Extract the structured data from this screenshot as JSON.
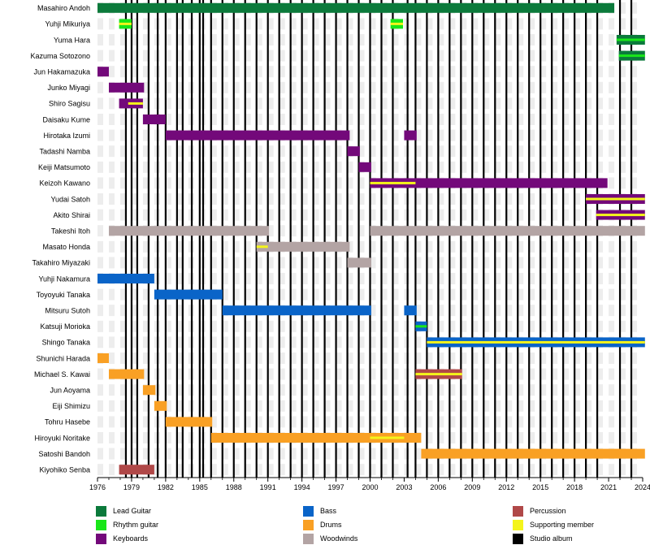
{
  "chart_data": {
    "type": "timeline",
    "x_range": [
      1976,
      2024
    ],
    "x_ticks": [
      1976,
      1979,
      1982,
      1985,
      1988,
      1991,
      1994,
      1997,
      2000,
      2003,
      2006,
      2009,
      2012,
      2015,
      2018,
      2021,
      2024
    ],
    "roles": {
      "lead_guitar": {
        "label": "Lead Guitar",
        "color": "#0b7a3b"
      },
      "rhythm_guitar": {
        "label": "Rhythm guitar",
        "color": "#19e619"
      },
      "keyboards": {
        "label": "Keyboards",
        "color": "#73097a"
      },
      "bass": {
        "label": "Bass",
        "color": "#0a64c8"
      },
      "drums": {
        "label": "Drums",
        "color": "#f9a024"
      },
      "woodwinds": {
        "label": "Woodwinds",
        "color": "#b3a4a4"
      },
      "percussion": {
        "label": "Percussion",
        "color": "#b04848"
      },
      "supporting": {
        "label": "Supporting member",
        "color": "#f4f41b"
      },
      "studio_album": {
        "label": "Studio album",
        "color": "#000000"
      }
    },
    "legend_order": [
      [
        "lead_guitar",
        "rhythm_guitar",
        "keyboards"
      ],
      [
        "bass",
        "drums",
        "woodwinds"
      ],
      [
        "percussion",
        "supporting",
        "studio_album"
      ]
    ],
    "members": [
      {
        "name": "Masahiro Andoh",
        "bars": [
          {
            "role": "lead_guitar",
            "start": 1976.0,
            "end": 2021.5
          }
        ]
      },
      {
        "name": "Yuhji Mikuriya",
        "bars": [
          {
            "role": "rhythm_guitar",
            "start": 1977.9,
            "end": 1979.0,
            "support": "supporting"
          },
          {
            "role": "rhythm_guitar",
            "start": 2001.8,
            "end": 2002.9,
            "support": "supporting"
          }
        ]
      },
      {
        "name": "Yuma Hara",
        "bars": [
          {
            "role": "lead_guitar",
            "start": 2021.7,
            "end": 2024.2,
            "support": "rhythm_guitar"
          }
        ]
      },
      {
        "name": "Kazuma Sotozono",
        "bars": [
          {
            "role": "lead_guitar",
            "start": 2021.9,
            "end": 2024.2,
            "support": "rhythm_guitar"
          }
        ]
      },
      {
        "name": "Jun Hakamazuka",
        "bars": [
          {
            "role": "keyboards",
            "start": 1976.0,
            "end": 1977.0
          }
        ]
      },
      {
        "name": "Junko Miyagi",
        "bars": [
          {
            "role": "keyboards",
            "start": 1977.0,
            "end": 1980.1
          }
        ]
      },
      {
        "name": "Shiro Sagisu",
        "bars": [
          {
            "role": "keyboards",
            "start": 1977.9,
            "end": 1980.0,
            "support": "supporting",
            "support_start": 1978.7,
            "support_end": 1980.0
          }
        ]
      },
      {
        "name": "Daisaku Kume",
        "bars": [
          {
            "role": "keyboards",
            "start": 1980.0,
            "end": 1982.0
          }
        ]
      },
      {
        "name": "Hirotaka Izumi",
        "bars": [
          {
            "role": "keyboards",
            "start": 1982.0,
            "end": 1998.2
          },
          {
            "role": "keyboards",
            "start": 2003.0,
            "end": 2004.1
          }
        ]
      },
      {
        "name": "Tadashi Namba",
        "bars": [
          {
            "role": "keyboards",
            "start": 1998.0,
            "end": 1999.1
          }
        ]
      },
      {
        "name": "Keiji Matsumoto",
        "bars": [
          {
            "role": "keyboards",
            "start": 1999.0,
            "end": 2000.1
          }
        ]
      },
      {
        "name": "Keizoh Kawano",
        "bars": [
          {
            "role": "keyboards",
            "start": 2000.0,
            "end": 2020.9,
            "support": "supporting",
            "support_start": 2000.0,
            "support_end": 2004.0
          }
        ]
      },
      {
        "name": "Yudai Satoh",
        "bars": [
          {
            "role": "keyboards",
            "start": 2019.0,
            "end": 2024.2,
            "support": "supporting"
          }
        ]
      },
      {
        "name": "Akito Shirai",
        "bars": [
          {
            "role": "keyboards",
            "start": 2019.9,
            "end": 2024.2,
            "support": "supporting"
          }
        ]
      },
      {
        "name": "Takeshi Itoh",
        "bars": [
          {
            "role": "woodwinds",
            "start": 1977.0,
            "end": 1991.1
          },
          {
            "role": "woodwinds",
            "start": 2000.0,
            "end": 2024.2
          }
        ]
      },
      {
        "name": "Masato Honda",
        "bars": [
          {
            "role": "woodwinds",
            "start": 1990.0,
            "end": 1998.2,
            "support": "supporting",
            "support_start": 1990.0,
            "support_end": 1991.0
          }
        ]
      },
      {
        "name": "Takahiro Miyazaki",
        "bars": [
          {
            "role": "woodwinds",
            "start": 1998.0,
            "end": 2000.1
          }
        ]
      },
      {
        "name": "Yuhji Nakamura",
        "bars": [
          {
            "role": "bass",
            "start": 1976.0,
            "end": 1981.0
          }
        ]
      },
      {
        "name": "Toyoyuki Tanaka",
        "bars": [
          {
            "role": "bass",
            "start": 1981.0,
            "end": 1987.0
          }
        ]
      },
      {
        "name": "Mitsuru Sutoh",
        "bars": [
          {
            "role": "bass",
            "start": 1987.0,
            "end": 2000.1
          },
          {
            "role": "bass",
            "start": 2003.0,
            "end": 2004.1
          }
        ]
      },
      {
        "name": "Katsuji Morioka",
        "bars": [
          {
            "role": "bass",
            "start": 2004.0,
            "end": 2005.0,
            "support": "rhythm_guitar"
          }
        ]
      },
      {
        "name": "Shingo Tanaka",
        "bars": [
          {
            "role": "bass",
            "start": 2005.0,
            "end": 2024.2,
            "support": "supporting"
          }
        ]
      },
      {
        "name": "Shunichi Harada",
        "bars": [
          {
            "role": "drums",
            "start": 1976.0,
            "end": 1977.0
          }
        ]
      },
      {
        "name": "Michael S. Kawai",
        "bars": [
          {
            "role": "drums",
            "start": 1977.0,
            "end": 1980.1
          },
          {
            "role": "percussion",
            "start": 2004.0,
            "end": 2008.1,
            "support": "supporting"
          }
        ]
      },
      {
        "name": "Jun Aoyama",
        "bars": [
          {
            "role": "drums",
            "start": 1980.0,
            "end": 1981.1
          }
        ]
      },
      {
        "name": "Eiji Shimizu",
        "bars": [
          {
            "role": "drums",
            "start": 1981.0,
            "end": 1982.1
          }
        ]
      },
      {
        "name": "Tohru Hasebe",
        "bars": [
          {
            "role": "drums",
            "start": 1982.0,
            "end": 1986.1
          }
        ]
      },
      {
        "name": "Hiroyuki Noritake",
        "bars": [
          {
            "role": "drums",
            "start": 1986.0,
            "end": 2004.5,
            "support": "supporting",
            "support_start": 2000.0,
            "support_end": 2003.0
          }
        ]
      },
      {
        "name": "Satoshi Bandoh",
        "bars": [
          {
            "role": "drums",
            "start": 2004.5,
            "end": 2024.2
          }
        ]
      },
      {
        "name": "Kiyohiko Senba",
        "bars": [
          {
            "role": "percussion",
            "start": 1977.9,
            "end": 1981.0
          }
        ]
      }
    ],
    "studio_albums": [
      1978.5,
      1979.0,
      1979.5,
      1980.5,
      1981.3,
      1982.0,
      1983.0,
      1983.5,
      1984.3,
      1985.0,
      1985.3,
      1986.0,
      1987.0,
      1988.0,
      1989.0,
      1990.0,
      1991.0,
      1992.0,
      1993.0,
      1994.0,
      1995.0,
      1996.0,
      1997.0,
      1998.0,
      1999.0,
      2000.0,
      2001.0,
      2002.0,
      2003.3,
      2004.0,
      2005.0,
      2006.0,
      2007.0,
      2008.0,
      2009.0,
      2010.0,
      2011.0,
      2012.0,
      2013.0,
      2014.0,
      2015.0,
      2016.0,
      2017.0,
      2018.0,
      2019.0,
      2020.0,
      2022.0,
      2023.0
    ]
  }
}
